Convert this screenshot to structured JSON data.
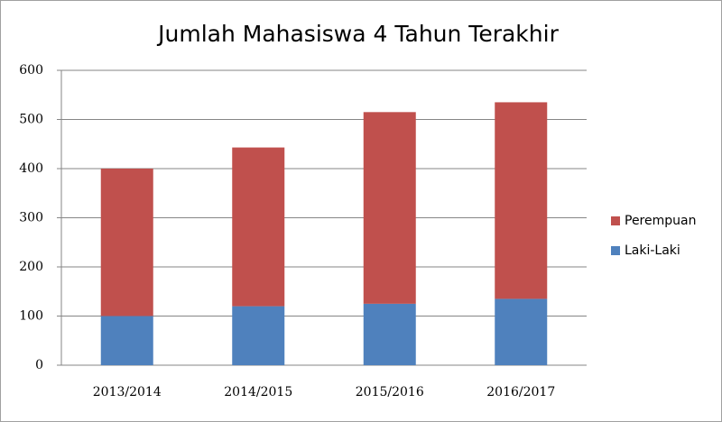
{
  "chart_data": {
    "type": "stacked_bar",
    "title": "Jumlah Mahasiswa 4 Tahun Terakhir",
    "categories": [
      "2013/2014",
      "2014/2015",
      "2015/2016",
      "2016/2017"
    ],
    "series": [
      {
        "name": "Laki-Laki",
        "color": "#4f81bd",
        "values": [
          100,
          120,
          125,
          135
        ]
      },
      {
        "name": "Perempuan",
        "color": "#c0504d",
        "values": [
          300,
          323,
          390,
          400
        ]
      }
    ],
    "ylim": [
      0,
      600
    ],
    "yticks": [
      0,
      100,
      200,
      300,
      400,
      500,
      600
    ],
    "grid": true,
    "legend": "right"
  }
}
